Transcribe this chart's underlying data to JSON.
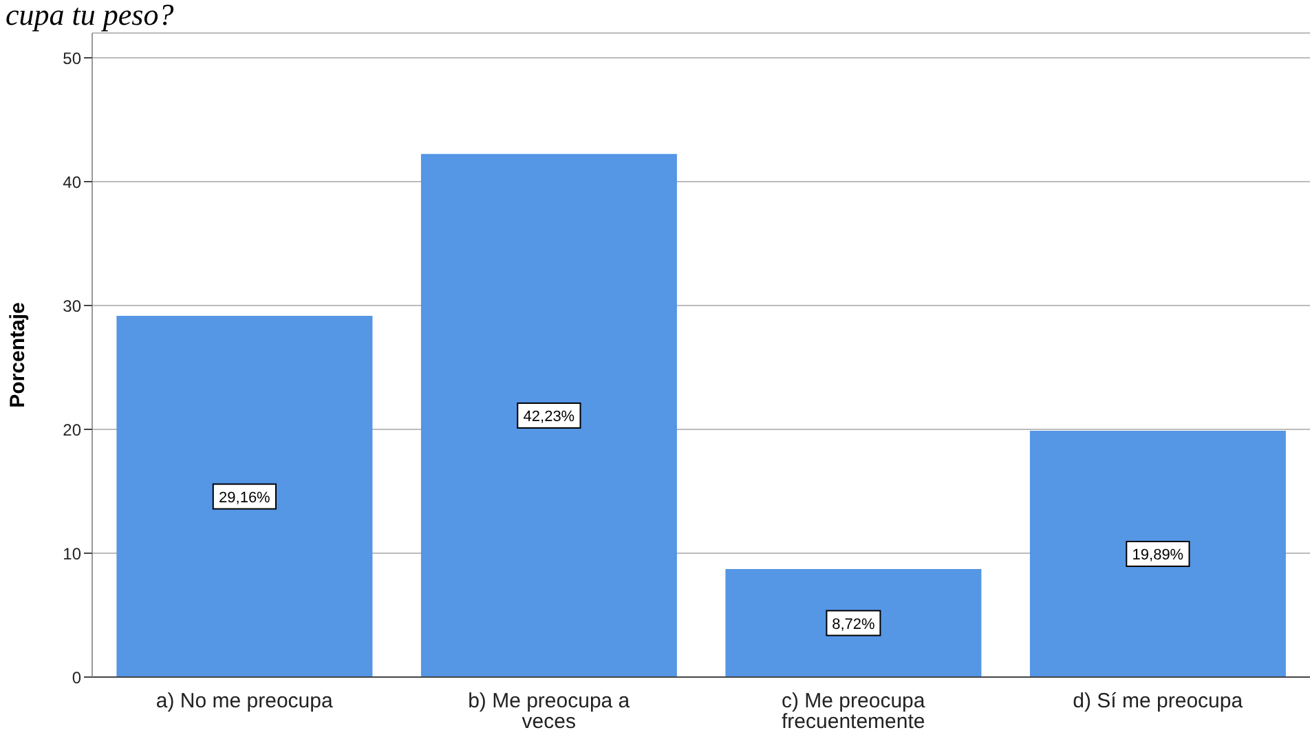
{
  "chart_data": {
    "type": "bar",
    "title": "cupa tu peso?",
    "ylabel": "Porcentaje",
    "categories": [
      "a) No me preocupa",
      "b) Me preocupa a veces",
      "c) Me preocupa frecuentemente",
      "d) Sí me preocupa"
    ],
    "values": [
      29.16,
      42.23,
      8.72,
      19.89
    ],
    "value_labels": [
      "29,16%",
      "42,23%",
      "8,72%",
      "19,89%"
    ],
    "color": "#5596e5",
    "ylim": [
      0,
      52
    ],
    "yticks": [
      0,
      10,
      20,
      30,
      40,
      50
    ],
    "grid": "y"
  }
}
